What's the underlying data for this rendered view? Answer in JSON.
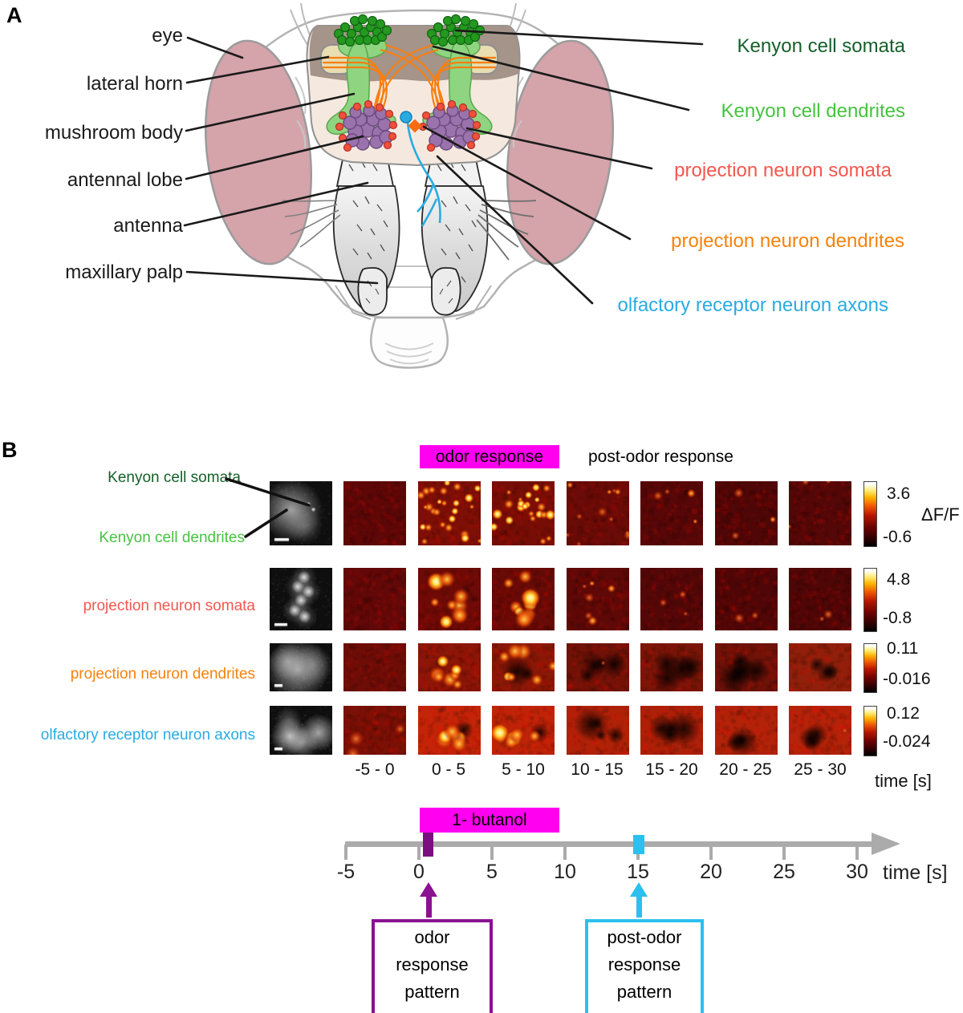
{
  "figure": {
    "panelA": {
      "tag": "A",
      "left_labels": [
        "eye",
        "lateral horn",
        "mushroom body",
        "antennal lobe",
        "antenna",
        "maxillary palp"
      ],
      "right_labels": [
        {
          "text": "Kenyon cell somata",
          "color": "#15602a"
        },
        {
          "text": "Kenyon cell dendrites",
          "color": "#47c241"
        },
        {
          "text": "projection neuron somata",
          "color": "#f2574e"
        },
        {
          "text": "projection neuron dendrites",
          "color": "#f6820c"
        },
        {
          "text": "olfactory receptor neuron axons",
          "color": "#29abe2"
        }
      ]
    },
    "panelB": {
      "tag": "B",
      "odor_header": {
        "text": "odor response",
        "bg": "#ff00f0"
      },
      "post_header": "post-odor response",
      "row_labels": [
        {
          "text": "Kenyon cell somata",
          "color": "#15602a"
        },
        {
          "text": "Kenyon cell dendrites",
          "color": "#47c241"
        },
        {
          "text": "projection neuron somata",
          "color": "#f2574e"
        },
        {
          "text": "projection neuron dendrites",
          "color": "#f6820c"
        },
        {
          "text": "olfactory receptor neuron axons",
          "color": "#29abe2"
        }
      ],
      "time_bins": [
        "-5 - 0",
        "0 - 5",
        "5 - 10",
        "10 - 15",
        "15 - 20",
        "20 - 25",
        "25 - 30"
      ],
      "time_axis_label": "time [s]",
      "colorbars": [
        {
          "max": "3.6",
          "min": "-0.6",
          "unit": "ΔF/F"
        },
        {
          "max": "4.8",
          "min": "-0.8"
        },
        {
          "max": "0.11",
          "min": "-0.016"
        },
        {
          "max": "0.12",
          "min": "-0.024"
        }
      ],
      "rows": [
        {
          "gray": {
            "pattern": "kc",
            "bar": 18
          },
          "cells": [
            {
              "base": "#5e0707"
            },
            {
              "base": "#7c0f06",
              "spots": 26,
              "bright": 1
            },
            {
              "base": "#770e06",
              "spots": 22,
              "bright": 0.95
            },
            {
              "base": "#6a0b07",
              "spots": 11,
              "bright": 0.55
            },
            {
              "base": "#570707",
              "spots": 4,
              "bright": 0.6
            },
            {
              "base": "#4f0606",
              "spots": 3,
              "bright": 0.5
            },
            {
              "base": "#530707",
              "spots": 3,
              "bright": 0.4
            }
          ]
        },
        {
          "gray": {
            "pattern": "pn",
            "bar": 16
          },
          "cells": [
            {
              "base": "#620808"
            },
            {
              "base": "#6b0a06",
              "spots": 9,
              "bright": 1,
              "cluster": true,
              "big": true
            },
            {
              "base": "#680a06",
              "spots": 9,
              "bright": 0.9,
              "cluster": true,
              "big": true
            },
            {
              "base": "#5e0907",
              "spots": 6,
              "bright": 0.55,
              "cluster": true
            },
            {
              "base": "#540707",
              "spots": 3,
              "bright": 0.35,
              "cluster": true
            },
            {
              "base": "#500606",
              "spots": 2,
              "bright": 0.3,
              "cluster": true
            },
            {
              "base": "#4e0606",
              "spots": 2,
              "bright": 0.25,
              "cluster": true
            }
          ]
        },
        {
          "gray": {
            "pattern": "pnd",
            "bar": 10
          },
          "cells": [
            {
              "base": "#6e0d07"
            },
            {
              "base": "#8c1607",
              "spots": 7,
              "bright": 1,
              "big": true,
              "cluster": true,
              "dark": 1
            },
            {
              "base": "#8a1807",
              "spots": 7,
              "bright": 0.95,
              "big": true,
              "dark": 2
            },
            {
              "base": "#701207",
              "dark": 4,
              "spots": 1,
              "bright": 0.4
            },
            {
              "base": "#7c1508",
              "dark": 4
            },
            {
              "base": "#6f1208",
              "dark": 5
            },
            {
              "base": "#8f200b",
              "dark": 3
            }
          ]
        },
        {
          "gray": {
            "pattern": "orn",
            "bar": 10
          },
          "cells": [
            {
              "base": "#7a1006",
              "spots": 3,
              "bright": 0.25,
              "big": true
            },
            {
              "base": "#c42508",
              "spots": 6,
              "bright": 1,
              "big": true,
              "bottom": true,
              "dark": 1
            },
            {
              "base": "#c02408",
              "spots": 6,
              "bright": 1,
              "big": true,
              "bottom": true,
              "dark": 1
            },
            {
              "base": "#b02208",
              "dark": 4
            },
            {
              "base": "#ac2108",
              "dark": 4
            },
            {
              "base": "#b22309",
              "dark": 3
            },
            {
              "base": "#b52309",
              "dark": 3,
              "spots": 1,
              "bright": 0.5
            }
          ]
        }
      ]
    },
    "timeline": {
      "stimulus_label": "1- butanol",
      "stimulus_bg": "#ff00f0",
      "ticks": [
        "-5",
        "0",
        "5",
        "10",
        "15",
        "20",
        "25",
        "30"
      ],
      "axis_label": "time [s]",
      "axis_color": "#ababab",
      "odor_marker_color": "#7c0f80",
      "post_marker_color": "#2cc0ef",
      "odor_box": {
        "lines": [
          "odor",
          "response",
          "pattern"
        ],
        "border": "#8a1190"
      },
      "post_box": {
        "lines": [
          "post-odor",
          "response",
          "pattern"
        ],
        "border": "#2cc0ef"
      }
    }
  }
}
